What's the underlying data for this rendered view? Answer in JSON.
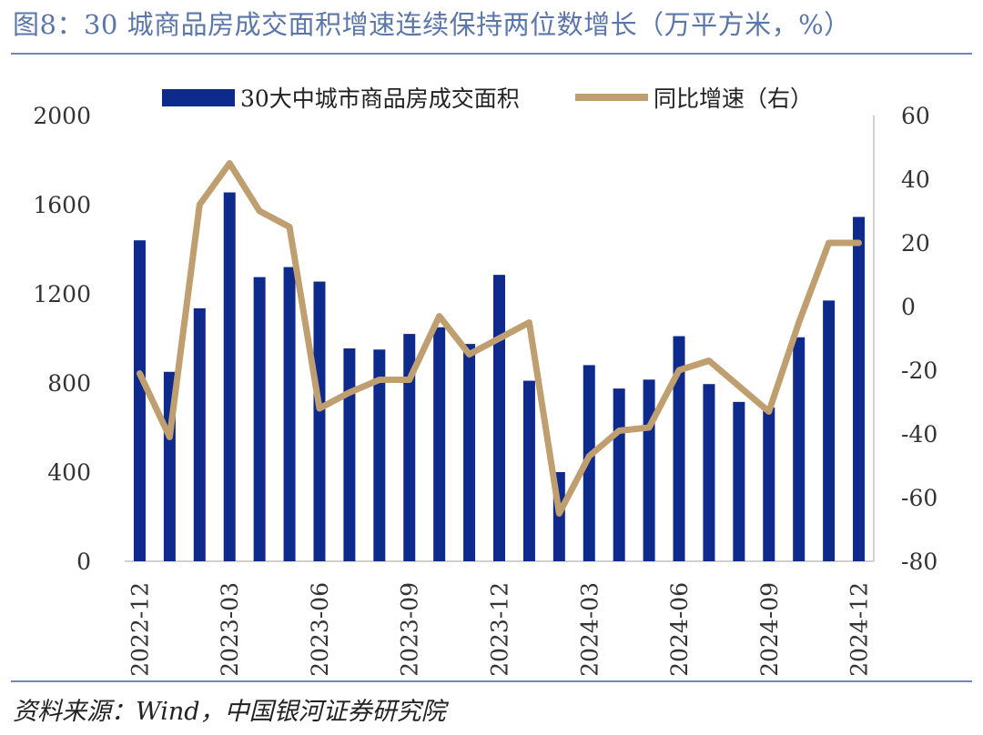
{
  "title": "图8：30 城商品房成交面积增速连续保持两位数增长（万平方米，%）",
  "source": "资料来源：Wind，中国银河证券研究院",
  "chart_data": {
    "type": "bar",
    "x": [
      "2022-12",
      "2023-01",
      "2023-02",
      "2023-03",
      "2023-04",
      "2023-05",
      "2023-06",
      "2023-07",
      "2023-08",
      "2023-09",
      "2023-10",
      "2023-11",
      "2023-12",
      "2024-01",
      "2024-02",
      "2024-03",
      "2024-04",
      "2024-05",
      "2024-06",
      "2024-07",
      "2024-08",
      "2024-09",
      "2024-10",
      "2024-11",
      "2024-12"
    ],
    "x_tick_labels": [
      "2022-12",
      "2023-03",
      "2023-06",
      "2023-09",
      "2023-12",
      "2024-03",
      "2024-06",
      "2024-09",
      "2024-12"
    ],
    "series": [
      {
        "name": "30大中城市商品房成交面积",
        "type": "bar",
        "axis": "left",
        "color": "#0e2a8c",
        "values": [
          1440,
          850,
          1135,
          1655,
          1275,
          1320,
          1255,
          955,
          950,
          1020,
          1050,
          975,
          1285,
          810,
          400,
          880,
          775,
          815,
          1010,
          795,
          715,
          690,
          1005,
          1170,
          1545
        ]
      },
      {
        "name": "同比增速（右）",
        "type": "line",
        "axis": "right",
        "color": "#bf9e6f",
        "values": [
          -21,
          -41,
          32,
          45,
          30,
          25,
          -32,
          -27,
          -23,
          -23,
          -3,
          -15,
          -10,
          -5,
          -65,
          -47,
          -39,
          -38,
          -20,
          -17,
          -25,
          -33,
          -5,
          20,
          20
        ]
      }
    ],
    "left_axis": {
      "ylim": [
        0,
        2000
      ],
      "ticks": [
        "0",
        "400",
        "800",
        "1200",
        "1600",
        "2000"
      ]
    },
    "right_axis": {
      "ylim": [
        -80,
        60
      ],
      "ticks": [
        "-80",
        "-60",
        "-40",
        "-20",
        "0",
        "20",
        "40",
        "60"
      ]
    },
    "legend_position": "top",
    "grid": false
  }
}
